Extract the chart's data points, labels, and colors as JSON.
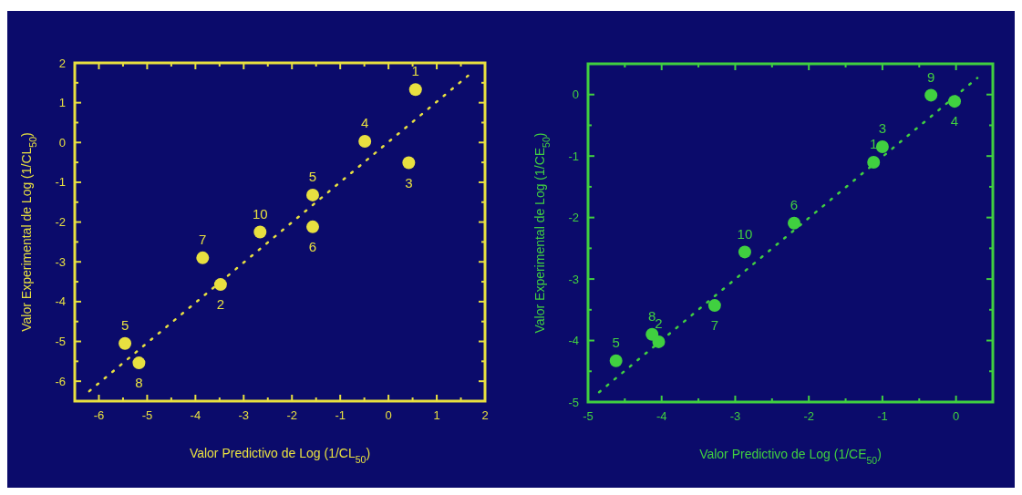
{
  "chart_data": [
    {
      "type": "scatter",
      "xlabel": "Valor Predictivo de Log (1/CL$_{50}$)",
      "ylabel": "Valor Experimental de Log (1/CL$_{50}$)",
      "xlim": [
        -6.5,
        2
      ],
      "ylim": [
        -6.5,
        2
      ],
      "xticks": [
        -6,
        {
          "value": -5.5,
          "label": null
        },
        -5,
        {
          "value": -4.5,
          "label": null
        },
        -4,
        {
          "value": -3.5,
          "label": null
        },
        -3,
        {
          "value": -2.5,
          "label": null
        },
        -2,
        {
          "value": -1.5,
          "label": null
        },
        -1,
        {
          "value": -0.5,
          "label": null
        },
        0,
        {
          "value": 0.5,
          "label": null
        },
        1,
        {
          "value": 1.5,
          "label": null
        },
        2
      ],
      "yticks": [
        -6,
        {
          "value": -5.5,
          "label": null
        },
        -5,
        {
          "value": -4.5,
          "label": null
        },
        -4,
        {
          "value": -3.5,
          "label": null
        },
        -3,
        {
          "value": -2.5,
          "label": null
        },
        -2,
        {
          "value": -1.5,
          "label": null
        },
        -1,
        {
          "value": -0.5,
          "label": null
        },
        0,
        {
          "value": 0.5,
          "label": null
        },
        1,
        {
          "value": 1.5,
          "label": null
        },
        2
      ],
      "marker": "circle",
      "series": [
        {
          "color": "#e8e040",
          "x": [
            0.56,
            -3.48,
            0.42,
            -0.49,
            -1.57,
            -1.57,
            -3.85,
            -5.17,
            -5.46,
            -2.66
          ],
          "values": [
            1.33,
            -3.57,
            -0.51,
            0.03,
            -1.32,
            -2.12,
            -2.9,
            -5.54,
            -5.05,
            -2.25
          ]
        },
        {
          "type": "line",
          "color": "#e8e040",
          "line_style": "dotted",
          "marker": "none",
          "x": [
            -6.2,
            1.65
          ],
          "values": [
            -6.25,
            1.68
          ]
        }
      ],
      "annotations": [
        {
          "text": "1",
          "x": 0.56,
          "y": 1.33
        },
        {
          "text": "2",
          "x": -3.48,
          "y": -3.57
        },
        {
          "text": "3",
          "x": 0.42,
          "y": -0.51
        },
        {
          "text": "4",
          "x": -0.49,
          "y": 0.03
        },
        {
          "text": "5",
          "x": -1.57,
          "y": -1.32
        },
        {
          "text": "6",
          "x": -1.57,
          "y": -2.12
        },
        {
          "text": "7",
          "x": -3.85,
          "y": -2.9
        },
        {
          "text": "8",
          "x": -5.17,
          "y": -5.54
        },
        {
          "text": "5",
          "x": -5.46,
          "y": -5.05
        },
        {
          "text": "10",
          "x": -2.66,
          "y": -2.25
        }
      ]
    },
    {
      "type": "scatter",
      "xlabel": "Valor Predictivo de Log (1/CE$_{50}$)",
      "ylabel": "Valor Experimental de Log (1/CE$_{50}$)",
      "xlim": [
        -5,
        0.5
      ],
      "ylim": [
        -5,
        0.5
      ],
      "xticks": [
        -5,
        {
          "value": -4.5,
          "label": null
        },
        -4,
        {
          "value": -3.5,
          "label": null
        },
        -3,
        {
          "value": -2.5,
          "label": null
        },
        -2,
        {
          "value": -1.5,
          "label": null
        },
        -1,
        {
          "value": -0.5,
          "label": null
        },
        0
      ],
      "yticks": [
        -5,
        {
          "value": -4.5,
          "label": null
        },
        -4,
        {
          "value": -3.5,
          "label": null
        },
        -3,
        {
          "value": -2.5,
          "label": null
        },
        -2,
        {
          "value": -1.5,
          "label": null
        },
        -1,
        {
          "value": -0.5,
          "label": null
        },
        0
      ],
      "marker": "circle",
      "series": [
        {
          "color": "#40d040",
          "x": [
            -1.12,
            -4.04,
            -1.0,
            -0.02,
            -4.62,
            -2.2,
            -3.28,
            -4.13,
            -0.34,
            -2.87
          ],
          "values": [
            -1.1,
            -4.02,
            -0.85,
            -0.11,
            -4.33,
            -2.09,
            -3.43,
            -3.9,
            -0.01,
            -2.56
          ]
        },
        {
          "type": "line",
          "color": "#40d040",
          "line_style": "dotted",
          "marker": "none",
          "x": [
            -4.85,
            0.29
          ],
          "values": [
            -4.84,
            0.27
          ]
        }
      ],
      "annotations": [
        {
          "text": "1",
          "x": -1.12,
          "y": -1.1
        },
        {
          "text": "2",
          "x": -4.04,
          "y": -4.02
        },
        {
          "text": "3",
          "x": -1.0,
          "y": -0.85
        },
        {
          "text": "4",
          "x": -0.02,
          "y": -0.11
        },
        {
          "text": "5",
          "x": -4.62,
          "y": -4.33
        },
        {
          "text": "6",
          "x": -2.2,
          "y": -2.09
        },
        {
          "text": "7",
          "x": -3.28,
          "y": -3.43
        },
        {
          "text": "8",
          "x": -4.13,
          "y": -3.9
        },
        {
          "text": "9",
          "x": -0.34,
          "y": -0.01
        },
        {
          "text": "10",
          "x": -2.87,
          "y": -2.56
        }
      ]
    }
  ]
}
